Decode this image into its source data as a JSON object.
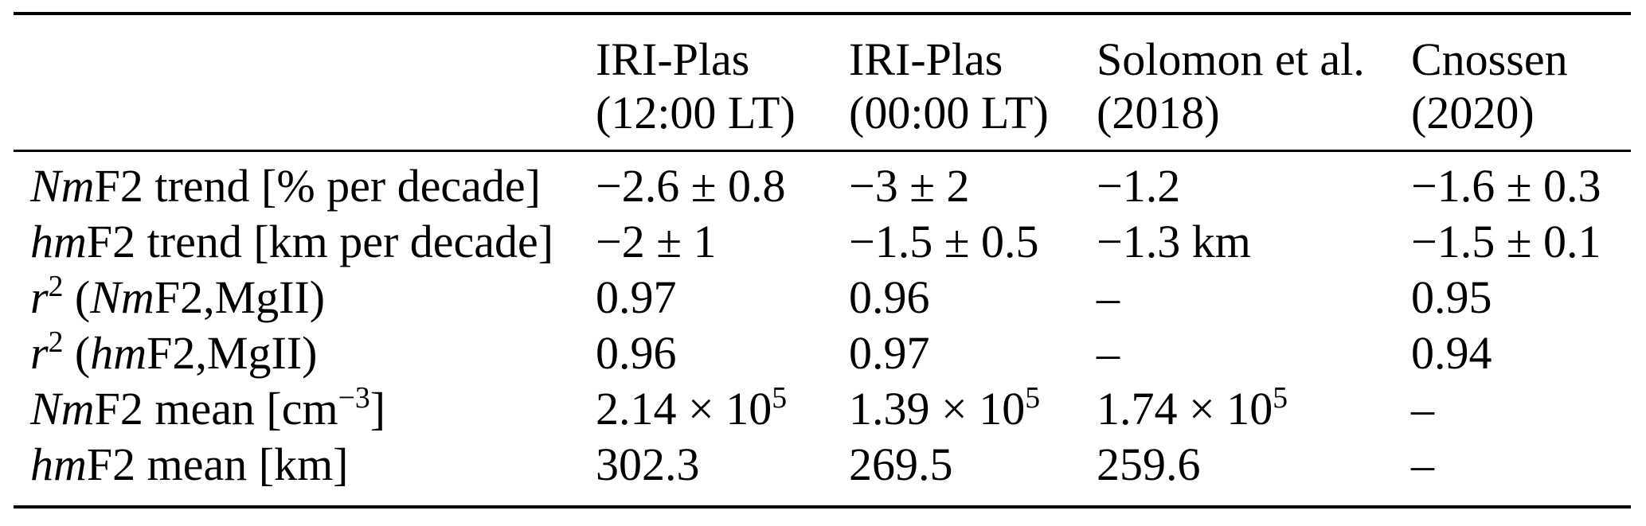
{
  "page": {
    "background": "#ffffff",
    "text_color": "#000000",
    "rule_color": "#000000"
  },
  "table": {
    "header": {
      "row_label_column": "",
      "columns": [
        {
          "line1": "IRI-Plas",
          "line2": "(12:00 LT)"
        },
        {
          "line1": "IRI-Plas",
          "line2": "(00:00 LT)"
        },
        {
          "line1": "Solomon et al.",
          "line2": "(2018)"
        },
        {
          "line1": "Cnossen",
          "line2": "(2020)"
        }
      ]
    },
    "rows": [
      {
        "label": [
          {
            "text": "Nm",
            "italic": true
          },
          {
            "text": "F2 trend [% per decade]"
          }
        ],
        "values": [
          "−2.6 ± 0.8",
          "−3 ± 2",
          "−1.2",
          "−1.6 ± 0.3"
        ]
      },
      {
        "label": [
          {
            "text": "hm",
            "italic": true
          },
          {
            "text": "F2 trend [km per decade]"
          }
        ],
        "values": [
          "−2 ± 1",
          "−1.5 ± 0.5",
          "−1.3 km",
          "−1.5 ± 0.1"
        ]
      },
      {
        "label": [
          {
            "text": "r",
            "italic": true
          },
          {
            "text": "2",
            "sup": true
          },
          {
            "text": " ("
          },
          {
            "text": "Nm",
            "italic": true
          },
          {
            "text": "F2,MgII)"
          }
        ],
        "values": [
          "0.97",
          "0.96",
          "–",
          "0.95"
        ]
      },
      {
        "label": [
          {
            "text": "r",
            "italic": true
          },
          {
            "text": "2",
            "sup": true
          },
          {
            "text": " ("
          },
          {
            "text": "hm",
            "italic": true
          },
          {
            "text": "F2,MgII)"
          }
        ],
        "values": [
          "0.96",
          "0.97",
          "–",
          "0.94"
        ]
      },
      {
        "label": [
          {
            "text": "Nm",
            "italic": true
          },
          {
            "text": "F2 mean [cm"
          },
          {
            "text": "−3",
            "sup": true
          },
          {
            "text": "]"
          }
        ],
        "values": [
          [
            {
              "text": "2.14 × 10"
            },
            {
              "text": "5",
              "sup": true
            }
          ],
          [
            {
              "text": "1.39 × 10"
            },
            {
              "text": "5",
              "sup": true
            }
          ],
          [
            {
              "text": "1.74 × 10"
            },
            {
              "text": "5",
              "sup": true
            }
          ],
          "–"
        ]
      },
      {
        "label": [
          {
            "text": "hm",
            "italic": true
          },
          {
            "text": "F2 mean [km]"
          }
        ],
        "values": [
          "302.3",
          "269.5",
          "259.6",
          "–"
        ]
      }
    ]
  }
}
